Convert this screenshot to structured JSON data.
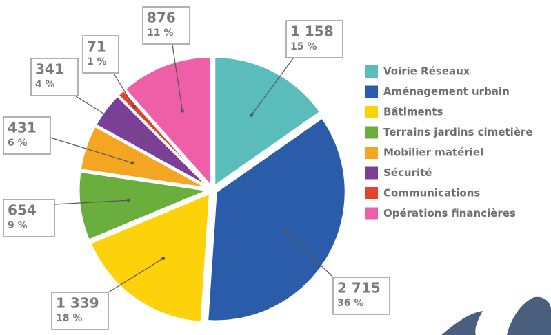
{
  "chart_data": {
    "type": "pie",
    "categories": [
      "Voirie Réseaux",
      "Aménagement urbain",
      "Bâtiments",
      "Terrains jardins cimetière",
      "Mobilier matériel",
      "Sécurité",
      "Communications",
      "Opérations financières"
    ],
    "values": [
      1158,
      2715,
      1339,
      654,
      431,
      341,
      71,
      876
    ],
    "value_labels": [
      "1 158",
      "2 715",
      "1 339",
      "654",
      "431",
      "341",
      "71",
      "876"
    ],
    "percent_labels": [
      "15 %",
      "36 %",
      "18 %",
      "9 %",
      "6 %",
      "4 %",
      "1 %",
      "11 %"
    ],
    "colors": [
      "#5bbcbc",
      "#2a5caa",
      "#fdd20a",
      "#6aaf3d",
      "#f4a623",
      "#7b3f98",
      "#e8412c",
      "#ee5fa7"
    ],
    "legend": "right"
  }
}
